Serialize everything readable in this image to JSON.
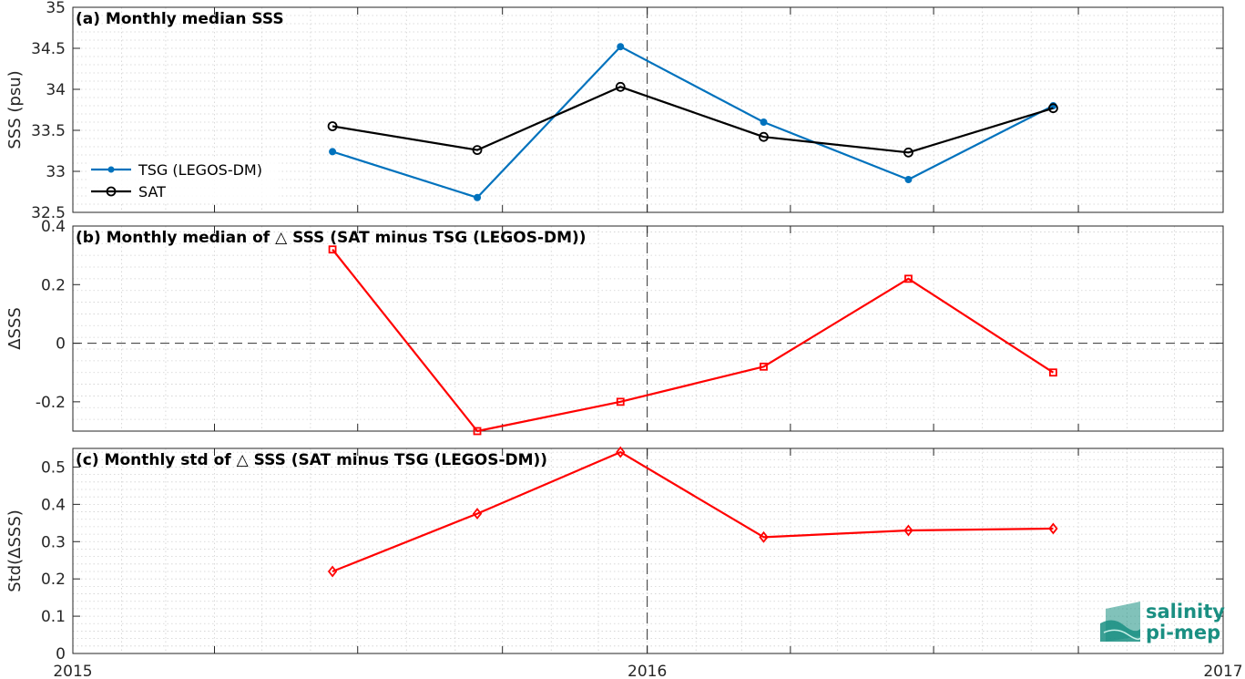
{
  "chart_data": [
    {
      "type": "line",
      "title": "(a) Monthly median SSS",
      "ylabel": "SSS (psu)",
      "ylim": [
        32.5,
        35
      ],
      "yticks": [
        32.5,
        33,
        33.5,
        34,
        34.5,
        35
      ],
      "ytick_labels": [
        "32.5",
        "33",
        "33.5",
        "34",
        "34.5",
        "35"
      ],
      "xlim": [
        "2015-01-01",
        "2017-01-01"
      ],
      "grid": "minor dotted",
      "legend_position": "left",
      "series": [
        {
          "name": "TSG (LEGOS-DM)",
          "color": "#0072bd",
          "marker": "dot",
          "x": [
            "2015-06-15",
            "2015-09-15",
            "2015-12-15",
            "2016-03-15",
            "2016-06-15",
            "2016-09-15"
          ],
          "values": [
            33.24,
            32.68,
            34.52,
            33.6,
            32.9,
            33.8
          ]
        },
        {
          "name": "SAT",
          "color": "#000000",
          "marker": "circle",
          "x": [
            "2015-06-15",
            "2015-09-15",
            "2015-12-15",
            "2016-03-15",
            "2016-06-15",
            "2016-09-15"
          ],
          "values": [
            33.55,
            33.26,
            34.03,
            33.42,
            33.23,
            33.77
          ]
        }
      ]
    },
    {
      "type": "line",
      "title": "(b) Monthly median of △ SSS (SAT minus TSG (LEGOS-DM))",
      "ylabel": "ΔSSS",
      "ylim": [
        -0.3,
        0.4
      ],
      "yticks": [
        -0.2,
        0,
        0.2,
        0.4
      ],
      "ytick_labels": [
        "-0.2",
        "0",
        "0.2",
        "0.4"
      ],
      "xlim": [
        "2015-01-01",
        "2017-01-01"
      ],
      "grid": "minor dotted",
      "reference_line": 0,
      "series": [
        {
          "color": "#ff0000",
          "marker": "square",
          "x": [
            "2015-06-15",
            "2015-09-15",
            "2015-12-15",
            "2016-03-15",
            "2016-06-15",
            "2016-09-15"
          ],
          "values": [
            0.32,
            -0.3,
            -0.2,
            -0.08,
            0.22,
            -0.1
          ]
        }
      ]
    },
    {
      "type": "line",
      "title": "(c) Monthly std of △ SSS (SAT minus TSG (LEGOS-DM))",
      "ylabel": "Std(ΔSSS)",
      "ylim": [
        0,
        0.55
      ],
      "yticks": [
        0,
        0.1,
        0.2,
        0.3,
        0.4,
        0.5
      ],
      "ytick_labels": [
        "0",
        "0.1",
        "0.2",
        "0.3",
        "0.4",
        "0.5"
      ],
      "xlim": [
        "2015-01-01",
        "2017-01-01"
      ],
      "xticks": [
        "2015-01-01",
        "2016-01-01",
        "2017-01-01"
      ],
      "xtick_labels": [
        "2015",
        "2016",
        "2017"
      ],
      "grid": "minor dotted",
      "series": [
        {
          "color": "#ff0000",
          "marker": "diamond",
          "x": [
            "2015-06-15",
            "2015-09-15",
            "2015-12-15",
            "2016-03-15",
            "2016-06-15",
            "2016-09-15"
          ],
          "values": [
            0.22,
            0.375,
            0.54,
            0.312,
            0.33,
            0.335
          ]
        }
      ]
    }
  ],
  "vertical_marker": "2016-01-01",
  "logo": {
    "line1": "salinity",
    "line2": "pi-mep",
    "color": "#1a8f82"
  }
}
